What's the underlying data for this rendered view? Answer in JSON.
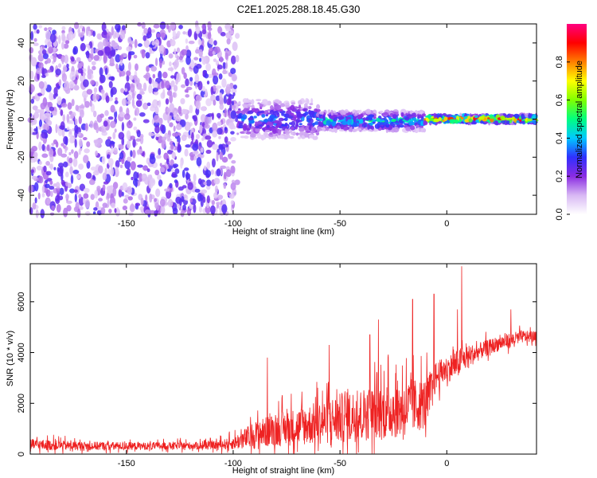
{
  "title": "C2E1.2025.288.18.45.G30",
  "chart_data": [
    {
      "type": "heatmap",
      "name": "spectrogram",
      "xlabel": "Height of straight line (km)",
      "ylabel": "Frequency (Hz)",
      "xlim": [
        -195,
        42
      ],
      "ylim": [
        -50,
        50
      ],
      "xticks": [
        -150,
        -100,
        -50,
        0
      ],
      "yticks": [
        -40,
        -20,
        0,
        20,
        40
      ],
      "xtick_labels": [
        "-150",
        "-100",
        "-50",
        "0"
      ],
      "ytick_labels": [
        "-40",
        "-20",
        "0",
        "20",
        "40"
      ],
      "colorbar": {
        "label": "Normalized spectral amplitude",
        "range": [
          0,
          1
        ],
        "ticks": [
          0.0,
          0.2,
          0.4,
          0.6,
          0.8
        ],
        "tick_labels": [
          "0.0",
          "0.2",
          "0.4",
          "0.6",
          "0.8"
        ],
        "colors": [
          "#ffffff",
          "#d8b8f4",
          "#8a2be2",
          "#3030ff",
          "#00c8ff",
          "#00ff80",
          "#80ff00",
          "#ffff00",
          "#ff8000",
          "#ff0000",
          "#ff0080"
        ]
      },
      "description_regions": [
        {
          "x_range": [
            -195,
            -98
          ],
          "pattern": "broadband noise",
          "amplitude": 0.15
        },
        {
          "x_range": [
            -98,
            -60
          ],
          "center_hz": 0,
          "spread_hz": 10,
          "amplitude": 0.35
        },
        {
          "x_range": [
            -60,
            -10
          ],
          "center_hz": -1,
          "spread_hz": 5,
          "amplitude": 0.45
        },
        {
          "x_range": [
            -10,
            42
          ],
          "center_hz": 0,
          "spread_hz": 2,
          "amplitude": 0.9
        }
      ]
    },
    {
      "type": "line",
      "name": "snr",
      "xlabel": "Height of straight line (km)",
      "ylabel": "SNR (10 * v/v)",
      "xlim": [
        -195,
        42
      ],
      "ylim": [
        0,
        7500
      ],
      "xticks": [
        -150,
        -100,
        -50,
        0
      ],
      "yticks": [
        0,
        2000,
        4000,
        6000
      ],
      "xtick_labels": [
        "-150",
        "-100",
        "-50",
        "0"
      ],
      "ytick_labels": [
        "0",
        "2000",
        "4000",
        "6000"
      ],
      "color": "#ee2222",
      "trend": {
        "x": [
          -195,
          -170,
          -140,
          -110,
          -100,
          -90,
          -80,
          -70,
          -60,
          -50,
          -40,
          -30,
          -20,
          -10,
          -5,
          0,
          5,
          10,
          15,
          20,
          25,
          30,
          35,
          42
        ],
        "base": [
          350,
          300,
          300,
          320,
          400,
          700,
          900,
          1000,
          1150,
          1300,
          1450,
          1550,
          1700,
          1900,
          3000,
          3300,
          3500,
          3800,
          4000,
          4200,
          4350,
          4450,
          4600,
          4600
        ],
        "spread": [
          450,
          350,
          300,
          300,
          500,
          1100,
          1300,
          1500,
          1700,
          2000,
          2100,
          2200,
          2300,
          2000,
          1200,
          1000,
          1200,
          900,
          700,
          600,
          600,
          600,
          500,
          400
        ]
      },
      "peaks": [
        {
          "x": -84,
          "y": 3800
        },
        {
          "x": -55,
          "y": 4300
        },
        {
          "x": -36,
          "y": 4700
        },
        {
          "x": -32,
          "y": 5300
        },
        {
          "x": -16,
          "y": 6100
        },
        {
          "x": -6,
          "y": 6300
        },
        {
          "x": 7,
          "y": 7400
        },
        {
          "x": 5,
          "y": 5700
        },
        {
          "x": 30,
          "y": 5700
        }
      ]
    }
  ]
}
